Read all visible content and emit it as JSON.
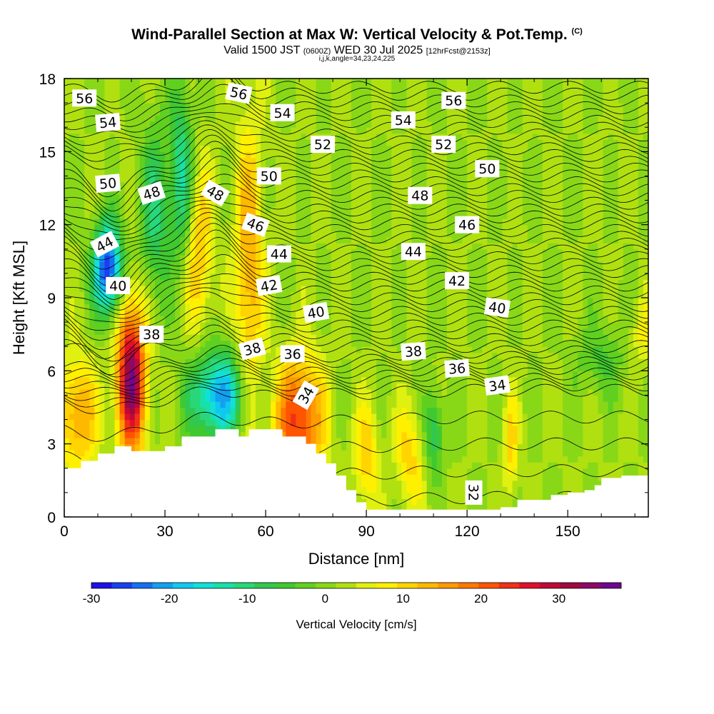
{
  "chart_data": {
    "type": "heatmap",
    "title": "Wind-Parallel Section at Max W: Vertical Velocity & Pot.Temp.",
    "title_mark": "(C)",
    "subtitle_main": "Valid 1500 JST",
    "subtitle_utc": "(0600Z)",
    "subtitle_date": "WED 30 Jul 2025",
    "subtitle_fcst": "[12hrFcst@2153z]",
    "params": "i,j,k,angle=34,23,24,225",
    "xlabel": "Distance [nm]",
    "ylabel": "Height [Kft MSL]",
    "xlim": [
      0,
      174
    ],
    "ylim": [
      0,
      18
    ],
    "x_ticks": [
      0,
      30,
      60,
      90,
      120,
      150
    ],
    "y_ticks": [
      0,
      3,
      6,
      9,
      12,
      15,
      18
    ],
    "colorbar": {
      "label": "Vertical Velocity [cm/s]",
      "range": [
        -30,
        38
      ],
      "ticks": [
        -30,
        -20,
        -10,
        0,
        10,
        20,
        30
      ],
      "colors": [
        "#1f10e8",
        "#1a3ff0",
        "#1670f0",
        "#12a0f0",
        "#10c8ee",
        "#12e0d8",
        "#18e0a8",
        "#28d878",
        "#30c850",
        "#40c830",
        "#60d020",
        "#88d818",
        "#b0e010",
        "#e0f010",
        "#fff000",
        "#ffd400",
        "#ffb800",
        "#ff9a00",
        "#ff7800",
        "#ff5400",
        "#f03018",
        "#e01028",
        "#c00838",
        "#a00840",
        "#8c0868",
        "#6c088c"
      ]
    },
    "velocity_features": [
      {
        "x": 20,
        "z": 5.7,
        "w": 33,
        "sx": 3,
        "sz": 2.2
      },
      {
        "x": 13,
        "z": 10.2,
        "w": -29,
        "sx": 3,
        "sz": 1.3
      },
      {
        "x": 46,
        "z": 5.0,
        "w": -22,
        "sx": 6,
        "sz": 1.3
      },
      {
        "x": 40,
        "z": 11.0,
        "w": 11,
        "sx": 3,
        "sz": 2.5
      },
      {
        "x": 55,
        "z": 10.0,
        "w": 13,
        "sx": 3,
        "sz": 4.5
      },
      {
        "x": 70,
        "z": 4.0,
        "w": 22,
        "sx": 5,
        "sz": 1.8
      },
      {
        "x": 4,
        "z": 4.2,
        "w": 14,
        "sx": 4,
        "sz": 1.6
      },
      {
        "x": 90,
        "z": 2.5,
        "w": 10,
        "sx": 2.5,
        "sz": 1.5
      },
      {
        "x": 103,
        "z": 2.5,
        "w": 9,
        "sx": 3,
        "sz": 1.5
      },
      {
        "x": 133,
        "z": 3.0,
        "w": 9,
        "sx": 1.5,
        "sz": 1.5
      },
      {
        "x": 173,
        "z": 7.5,
        "w": 6,
        "sx": 3,
        "sz": 1.0
      },
      {
        "x": 35,
        "z": 14.0,
        "w": -14,
        "sx": 2.5,
        "sz": 2.5
      },
      {
        "x": 27,
        "z": 12.5,
        "w": -11,
        "sx": 3,
        "sz": 2.5
      },
      {
        "x": 110,
        "z": 3.5,
        "w": -11,
        "sx": 2,
        "sz": 1.2
      },
      {
        "x": 160,
        "z": 6.5,
        "w": -6,
        "sx": 5,
        "sz": 1.0
      }
    ],
    "terrain": [
      [
        0,
        2
      ],
      [
        5,
        2.3
      ],
      [
        10,
        2.6
      ],
      [
        15,
        2.9
      ],
      [
        20,
        2.7
      ],
      [
        25,
        2.7
      ],
      [
        30,
        2.9
      ],
      [
        35,
        3.3
      ],
      [
        40,
        3.3
      ],
      [
        45,
        3.6
      ],
      [
        50,
        3.6
      ],
      [
        52,
        3.3
      ],
      [
        55,
        3.6
      ],
      [
        60,
        3.6
      ],
      [
        65,
        3.3
      ],
      [
        70,
        3.3
      ],
      [
        72,
        3.0
      ],
      [
        75,
        2.6
      ],
      [
        78,
        2.2
      ],
      [
        81,
        1.7
      ],
      [
        84,
        1.1
      ],
      [
        87,
        0.6
      ],
      [
        90,
        0.3
      ],
      [
        120,
        0.3
      ],
      [
        130,
        0.4
      ],
      [
        135,
        0.7
      ],
      [
        140,
        0.7
      ],
      [
        145,
        0.9
      ],
      [
        150,
        1.0
      ],
      [
        155,
        1.1
      ],
      [
        158,
        1.3
      ],
      [
        160,
        1.6
      ],
      [
        166,
        1.7
      ],
      [
        174,
        1.7
      ]
    ],
    "theta_contours": [
      {
        "value": 32,
        "label_x": 122,
        "label_z": 1.0,
        "label_angle": 90
      },
      {
        "value": 34,
        "label_x": 129,
        "label_z": 5.4,
        "label_angle": -8
      },
      {
        "value": 36,
        "label_x": 117,
        "label_z": 6.1,
        "label_angle": -4
      },
      {
        "value": 38,
        "label_x": 104,
        "label_z": 6.8,
        "label_angle": -4
      },
      {
        "value": 40,
        "label_x": 129,
        "label_z": 8.6,
        "label_angle": 8
      },
      {
        "value": 42,
        "label_x": 117,
        "label_z": 9.7,
        "label_angle": 0
      },
      {
        "value": 44,
        "label_x": 104,
        "label_z": 10.9,
        "label_angle": 0
      },
      {
        "value": 46,
        "label_x": 120,
        "label_z": 12.0,
        "label_angle": 0
      },
      {
        "value": 48,
        "label_x": 106,
        "label_z": 13.2,
        "label_angle": 0
      },
      {
        "value": 50,
        "label_x": 126,
        "label_z": 14.3,
        "label_angle": 0
      },
      {
        "value": 52,
        "label_x": 113,
        "label_z": 15.3,
        "label_angle": 0
      },
      {
        "value": 54,
        "label_x": 101,
        "label_z": 16.3,
        "label_angle": 0
      },
      {
        "value": 56,
        "label_x": 116,
        "label_z": 17.1,
        "label_angle": 0
      }
    ],
    "contour_label_positions": [
      {
        "text": "56",
        "x": 6,
        "z": 17.2,
        "angle": 0
      },
      {
        "text": "54",
        "x": 13,
        "z": 16.2,
        "angle": -5
      },
      {
        "text": "50",
        "x": 13,
        "z": 13.7,
        "angle": -5
      },
      {
        "text": "48",
        "x": 26,
        "z": 13.3,
        "angle": -18
      },
      {
        "text": "44",
        "x": 12,
        "z": 11.2,
        "angle": -28
      },
      {
        "text": "40",
        "x": 16,
        "z": 9.5,
        "angle": 0
      },
      {
        "text": "38",
        "x": 26,
        "z": 7.5,
        "angle": 0
      },
      {
        "text": "56",
        "x": 52,
        "z": 17.4,
        "angle": 12
      },
      {
        "text": "54",
        "x": 65,
        "z": 16.6,
        "angle": 0
      },
      {
        "text": "52",
        "x": 77,
        "z": 15.3,
        "angle": 0
      },
      {
        "text": "50",
        "x": 61,
        "z": 14.0,
        "angle": 0
      },
      {
        "text": "48",
        "x": 45,
        "z": 13.3,
        "angle": 30
      },
      {
        "text": "46",
        "x": 57,
        "z": 12.0,
        "angle": 20
      },
      {
        "text": "44",
        "x": 64,
        "z": 10.8,
        "angle": 0
      },
      {
        "text": "42",
        "x": 61,
        "z": 9.5,
        "angle": -10
      },
      {
        "text": "40",
        "x": 75,
        "z": 8.4,
        "angle": -10
      },
      {
        "text": "38",
        "x": 56,
        "z": 6.9,
        "angle": -15
      },
      {
        "text": "36",
        "x": 68,
        "z": 6.7,
        "angle": 0
      },
      {
        "text": "34",
        "x": 72,
        "z": 5.0,
        "angle": -60
      }
    ]
  }
}
